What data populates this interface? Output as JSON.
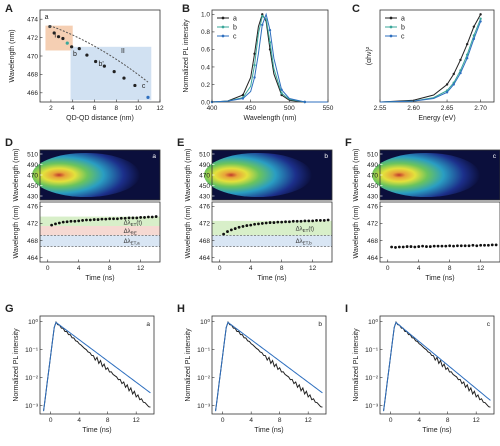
{
  "colors": {
    "black": "#222222",
    "teal": "#3aa79a",
    "blue": "#2e6fbf",
    "orange": "#f3c7a6",
    "lightblue": "#c9dcf0",
    "green": "#d8efc9",
    "pink": "#f6d9d2"
  },
  "panels": {
    "A": {
      "letter": "A",
      "xlabel": "QD-QD distance (nm)",
      "ylabel": "Wavelength (nm)",
      "region_I": "I",
      "region_II": "II",
      "point_labels": [
        "a",
        "b",
        "b'",
        "c"
      ],
      "xticks": [
        "2",
        "4",
        "6",
        "8",
        "10",
        "12"
      ],
      "yticks": [
        "466",
        "468",
        "470",
        "472",
        "474"
      ]
    },
    "B": {
      "letter": "B",
      "xlabel": "Wavelength (nm)",
      "ylabel": "Normalized PL intensity",
      "xticks": [
        "400",
        "450",
        "500",
        "550"
      ],
      "yticks": [
        "0.0",
        "0.2",
        "0.4",
        "0.6",
        "0.8",
        "1.0"
      ],
      "legend": [
        "a",
        "b",
        "c"
      ]
    },
    "C": {
      "letter": "C",
      "xlabel": "Energy (eV)",
      "ylabel": "(αhν)²",
      "xticks": [
        "2.55",
        "2.60",
        "2.65",
        "2.70"
      ],
      "legend": [
        "a",
        "b",
        "c"
      ]
    },
    "D": {
      "letter": "D",
      "tag": "a",
      "ylabel_top": "Wavelength (nm)",
      "ylabel_bottom": "Wavelength (nm)",
      "xlabel": "Time (ns)",
      "top_yticks": [
        "510",
        "490",
        "470",
        "450",
        "430"
      ],
      "bottom_yticks": [
        "476",
        "472",
        "468",
        "464"
      ],
      "xticks": [
        "0",
        "4",
        "8",
        "12"
      ],
      "annotations": [
        "Δλ_ET(t)",
        "Δλ_RE",
        "Δλ_ET,a"
      ]
    },
    "E": {
      "letter": "E",
      "tag": "b",
      "ylabel_top": "Wavelength (nm)",
      "ylabel_bottom": "Wavelength (nm)",
      "xlabel": "Time (ns)",
      "top_yticks": [
        "510",
        "490",
        "470",
        "450",
        "430"
      ],
      "bottom_yticks": [
        "476",
        "472",
        "468",
        "464"
      ],
      "xticks": [
        "0",
        "4",
        "8",
        "12"
      ],
      "annotations": [
        "Δλ_ET(t)",
        "Δλ_ET,b"
      ]
    },
    "F": {
      "letter": "F",
      "tag": "c",
      "ylabel_top": "Wavelength (nm)",
      "ylabel_bottom": "Wavelength (nm)",
      "xlabel": "Time (ns)",
      "top_yticks": [
        "510",
        "490",
        "470",
        "450",
        "430"
      ],
      "bottom_yticks": [
        "476",
        "472",
        "468",
        "464"
      ],
      "xticks": [
        "0",
        "4",
        "8",
        "12"
      ]
    },
    "G": {
      "letter": "G",
      "tag": "a",
      "ylabel": "Normalized PL intensity",
      "xlabel": "Time (ns)",
      "xticks": [
        "0",
        "4",
        "8",
        "12"
      ],
      "yticks": [
        "10⁰",
        "10⁻¹",
        "10⁻²",
        "10⁻³"
      ]
    },
    "H": {
      "letter": "H",
      "tag": "b",
      "ylabel": "Normalized PL intensity",
      "xlabel": "Time (ns)",
      "xticks": [
        "0",
        "4",
        "8",
        "12"
      ],
      "yticks": [
        "10⁰",
        "10⁻¹",
        "10⁻²",
        "10⁻³"
      ]
    },
    "I": {
      "letter": "I",
      "tag": "c",
      "ylabel": "Normalized PL intensity",
      "xlabel": "Time (ns)",
      "xticks": [
        "0",
        "4",
        "8",
        "12"
      ],
      "yticks": [
        "10⁰",
        "10⁻¹",
        "10⁻²",
        "10⁻³"
      ]
    }
  },
  "chart_data": [
    {
      "type": "scatter",
      "panel": "A",
      "x": [
        1.9,
        2.3,
        2.7,
        3.1,
        3.5,
        3.9,
        4.6,
        5.3,
        6.1,
        6.9,
        7.8,
        8.7,
        9.7,
        10.9
      ],
      "y": [
        473.2,
        472.5,
        472.1,
        471.9,
        471.4,
        471.0,
        470.8,
        470.1,
        469.4,
        468.9,
        468.3,
        467.6,
        466.8,
        465.5
      ],
      "xlim": [
        1,
        12
      ],
      "ylim": [
        465,
        475
      ]
    },
    {
      "type": "line",
      "panel": "B",
      "series": [
        {
          "name": "a",
          "x": [
            400,
            420,
            440,
            450,
            455,
            460,
            465,
            470,
            475,
            480,
            490,
            500,
            520,
            550
          ],
          "y": [
            0,
            0.01,
            0.08,
            0.28,
            0.55,
            0.86,
            1.0,
            0.92,
            0.6,
            0.32,
            0.08,
            0.02,
            0,
            0
          ]
        },
        {
          "name": "b",
          "x": [
            400,
            420,
            440,
            450,
            455,
            460,
            465,
            470,
            475,
            480,
            490,
            500,
            520,
            550
          ],
          "y": [
            0,
            0.01,
            0.05,
            0.18,
            0.42,
            0.78,
            0.98,
            0.95,
            0.68,
            0.38,
            0.1,
            0.03,
            0,
            0
          ]
        },
        {
          "name": "c",
          "x": [
            400,
            420,
            440,
            450,
            455,
            460,
            465,
            470,
            475,
            480,
            490,
            500,
            520,
            550
          ],
          "y": [
            0,
            0.01,
            0.04,
            0.12,
            0.28,
            0.55,
            0.88,
            1.0,
            0.82,
            0.5,
            0.14,
            0.04,
            0,
            0
          ]
        }
      ],
      "xlim": [
        400,
        550
      ],
      "ylim": [
        0,
        1.05
      ]
    },
    {
      "type": "line",
      "panel": "C",
      "series": [
        {
          "name": "a",
          "x": [
            2.55,
            2.6,
            2.63,
            2.65,
            2.66,
            2.67,
            2.68,
            2.69,
            2.7
          ],
          "y": [
            0,
            0.02,
            0.08,
            0.2,
            0.32,
            0.48,
            0.66,
            0.86,
            1.0
          ]
        },
        {
          "name": "b",
          "x": [
            2.55,
            2.6,
            2.63,
            2.65,
            2.66,
            2.67,
            2.68,
            2.69,
            2.7
          ],
          "y": [
            0,
            0.01,
            0.05,
            0.13,
            0.22,
            0.36,
            0.54,
            0.76,
            0.95
          ]
        },
        {
          "name": "c",
          "x": [
            2.55,
            2.6,
            2.63,
            2.65,
            2.66,
            2.67,
            2.68,
            2.69,
            2.7
          ],
          "y": [
            0,
            0.01,
            0.04,
            0.11,
            0.2,
            0.33,
            0.5,
            0.72,
            0.92
          ]
        }
      ],
      "xlim": [
        2.55,
        2.72
      ],
      "ylim": [
        0,
        1.05
      ]
    },
    {
      "type": "scatter",
      "panel": "D",
      "x": [
        0.5,
        1,
        1.5,
        2,
        2.5,
        3,
        3.5,
        4,
        4.5,
        5,
        5.5,
        6,
        6.5,
        7,
        7.5,
        8,
        8.5,
        9,
        9.5,
        10,
        10.5,
        11,
        11.5,
        12,
        12.5,
        13,
        13.5,
        14
      ],
      "y": [
        471.6,
        471.9,
        472.1,
        472.3,
        472.4,
        472.5,
        472.5,
        472.6,
        472.7,
        472.8,
        472.8,
        472.9,
        472.9,
        473.0,
        473.0,
        473.1,
        473.1,
        473.1,
        473.2,
        473.2,
        473.3,
        473.3,
        473.3,
        473.4,
        473.4,
        473.5,
        473.5,
        473.6
      ],
      "xlim": [
        -1,
        14.5
      ],
      "ylim": [
        463,
        477
      ]
    },
    {
      "type": "scatter",
      "panel": "E",
      "x": [
        0.5,
        1,
        1.5,
        2,
        2.5,
        3,
        3.5,
        4,
        4.5,
        5,
        5.5,
        6,
        6.5,
        7,
        7.5,
        8,
        8.5,
        9,
        9.5,
        10,
        10.5,
        11,
        11.5,
        12,
        12.5,
        13,
        13.5,
        14
      ],
      "y": [
        469.5,
        470.1,
        470.5,
        470.8,
        471.1,
        471.3,
        471.5,
        471.6,
        471.8,
        471.9,
        472.0,
        472.1,
        472.2,
        472.2,
        472.3,
        472.3,
        472.4,
        472.4,
        472.5,
        472.5,
        472.5,
        472.6,
        472.6,
        472.6,
        472.7,
        472.7,
        472.7,
        472.8
      ],
      "xlim": [
        -1,
        14.5
      ],
      "ylim": [
        463,
        477
      ]
    },
    {
      "type": "scatter",
      "panel": "F",
      "x": [
        0.5,
        1,
        1.5,
        2,
        2.5,
        3,
        3.5,
        4,
        4.5,
        5,
        5.5,
        6,
        6.5,
        7,
        7.5,
        8,
        8.5,
        9,
        9.5,
        10,
        10.5,
        11,
        11.5,
        12,
        12.5,
        13,
        13.5,
        14
      ],
      "y": [
        466.5,
        466.4,
        466.5,
        466.5,
        466.6,
        466.6,
        466.5,
        466.6,
        466.7,
        466.6,
        466.6,
        466.7,
        466.7,
        466.7,
        466.7,
        466.8,
        466.7,
        466.8,
        466.8,
        466.8,
        466.8,
        466.9,
        466.8,
        466.9,
        466.9,
        466.9,
        467.0,
        467.0
      ],
      "xlim": [
        -1,
        14.5
      ],
      "ylim": [
        463,
        477
      ]
    }
  ]
}
